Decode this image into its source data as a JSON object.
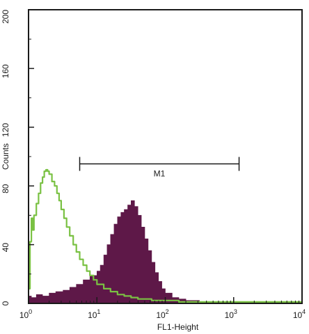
{
  "chart_data": {
    "type": "area",
    "xlabel": "FL1-Height",
    "ylabel": "Counts",
    "x_scale": "log",
    "xlim": [
      1,
      10000
    ],
    "ylim": [
      0,
      200
    ],
    "grid": false,
    "x_ticks": [
      {
        "value": 1,
        "base": "10",
        "exp": "0"
      },
      {
        "value": 10,
        "base": "10",
        "exp": "1"
      },
      {
        "value": 100,
        "base": "10",
        "exp": "2"
      },
      {
        "value": 1000,
        "base": "10",
        "exp": "3"
      },
      {
        "value": 10000,
        "base": "10",
        "exp": "4"
      }
    ],
    "y_ticks": [
      0,
      40,
      80,
      120,
      160,
      200
    ],
    "marker": {
      "label": "M1",
      "x_start": 5.6,
      "x_end": 1200,
      "y": 95
    },
    "series": [
      {
        "style": "filled",
        "color": "#5e1848",
        "x": [
          1.0,
          1.1,
          1.3,
          1.6,
          2.0,
          2.5,
          3.2,
          4.0,
          5.0,
          6.3,
          7.9,
          10,
          11.2,
          12.6,
          14.1,
          15.8,
          17.8,
          20.0,
          22.4,
          25.1,
          28.2,
          31.6,
          35.5,
          39.8,
          44.7,
          50.1,
          56.2,
          63.1,
          70.8,
          79.4,
          89.1,
          100,
          126,
          158,
          200,
          251,
          316,
          398,
          501,
          631,
          794,
          1000,
          1585,
          2512,
          3981,
          6310,
          10000
        ],
        "y": [
          5,
          4,
          6,
          5,
          7,
          8,
          9,
          11,
          13,
          16,
          19,
          22,
          26,
          33,
          40,
          47,
          54,
          59,
          62,
          64,
          67,
          70,
          66,
          60,
          52,
          44,
          36,
          28,
          21,
          15,
          10,
          7,
          4,
          3,
          2,
          2,
          1,
          1,
          1,
          1,
          1,
          1,
          1,
          1,
          1,
          1,
          0
        ]
      },
      {
        "style": "line",
        "color": "#7ac143",
        "x": [
          1.0,
          1.05,
          1.1,
          1.15,
          1.2,
          1.3,
          1.4,
          1.5,
          1.6,
          1.7,
          1.8,
          1.9,
          2.0,
          2.2,
          2.4,
          2.6,
          2.8,
          3.0,
          3.3,
          3.6,
          4.0,
          4.5,
          5.0,
          5.6,
          6.3,
          7.1,
          7.9,
          8.9,
          10.0,
          12.6,
          15.8,
          20.0,
          25.1,
          31.6,
          39.8,
          50.1,
          63.1,
          79.4,
          100,
          158,
          251,
          398,
          631,
          1000,
          1585,
          2512,
          3981,
          6310,
          10000
        ],
        "y": [
          10,
          42,
          58,
          50,
          60,
          68,
          75,
          82,
          86,
          90,
          91,
          90,
          88,
          83,
          80,
          75,
          70,
          64,
          58,
          52,
          46,
          40,
          35,
          30,
          26,
          22,
          19,
          16,
          13,
          10,
          8,
          6,
          5,
          4,
          3,
          3,
          2,
          2,
          2,
          1,
          1,
          1,
          1,
          1,
          1,
          1,
          1,
          1,
          0
        ]
      }
    ]
  }
}
